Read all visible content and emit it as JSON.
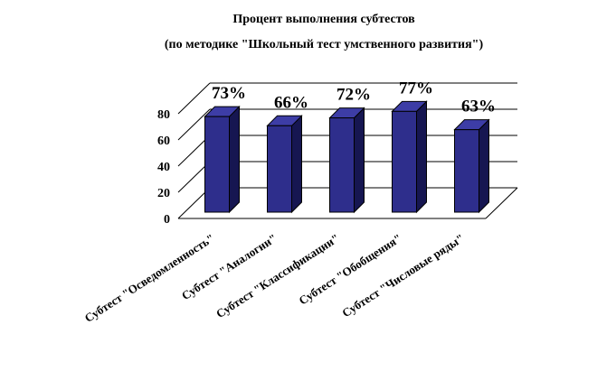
{
  "chart_data": {
    "type": "bar",
    "title": "Процент выполнения субтестов",
    "subtitle": "(по методике \"Школьный тест умственного развития\")",
    "categories": [
      "Субтест \"Осведомленность\"",
      "Субтест \"Аналогии\"",
      "Субтест \"Классификации\"",
      "Субтест \"Обобщения\"",
      "Субтест \"Числовые ряды\""
    ],
    "values": [
      73,
      66,
      72,
      77,
      63
    ],
    "data_labels": [
      "73%",
      "66%",
      "72%",
      "77%",
      "63%"
    ],
    "yticks": [
      "0",
      "20",
      "40",
      "60",
      "80"
    ],
    "ylim": [
      0,
      80
    ],
    "grid": true,
    "style": "3d-column",
    "bar_color": "#2e2e8c",
    "bar_side_color": "#161651",
    "bar_top_color": "#3d3da6"
  }
}
